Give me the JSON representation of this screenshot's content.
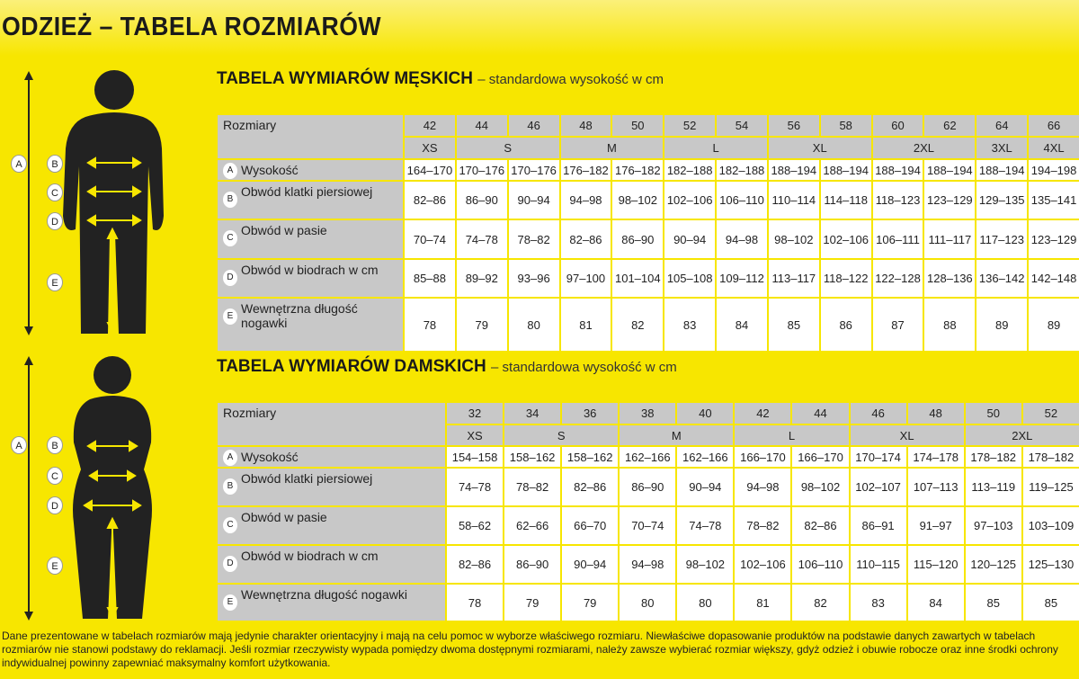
{
  "title": "ODZIEŻ – TABELA ROZMIARÓW",
  "men": {
    "heading": "TABELA WYMIARÓW MĘSKICH",
    "subheading": "– standardowa wysokość w cm",
    "size_label": "Rozmiary",
    "numbers": [
      "42",
      "44",
      "46",
      "48",
      "50",
      "52",
      "54",
      "56",
      "58",
      "60",
      "62",
      "64",
      "66"
    ],
    "letters": [
      {
        "l": "XS",
        "span": 1
      },
      {
        "l": "S",
        "span": 2
      },
      {
        "l": "M",
        "span": 2
      },
      {
        "l": "L",
        "span": 2
      },
      {
        "l": "XL",
        "span": 2
      },
      {
        "l": "2XL",
        "span": 2
      },
      {
        "l": "3XL",
        "span": 1
      },
      {
        "l": "4XL",
        "span": 1
      }
    ],
    "rows": [
      {
        "badge": "A",
        "label": "Wysokość",
        "values": [
          "164–170",
          "170–176",
          "170–176",
          "176–182",
          "176–182",
          "182–188",
          "182–188",
          "188–194",
          "188–194",
          "188–194",
          "188–194",
          "188–194",
          "194–198"
        ]
      },
      {
        "badge": "B",
        "label": "Obwód klatki piersiowej",
        "values": [
          "82–86",
          "86–90",
          "90–94",
          "94–98",
          "98–102",
          "102–106",
          "106–110",
          "110–114",
          "114–118",
          "118–123",
          "123–129",
          "129–135",
          "135–141"
        ]
      },
      {
        "badge": "C",
        "label": "Obwód w pasie",
        "values": [
          "70–74",
          "74–78",
          "78–82",
          "82–86",
          "86–90",
          "90–94",
          "94–98",
          "98–102",
          "102–106",
          "106–111",
          "111–117",
          "117–123",
          "123–129"
        ]
      },
      {
        "badge": "D",
        "label": "Obwód w biodrach w cm",
        "values": [
          "85–88",
          "89–92",
          "93–96",
          "97–100",
          "101–104",
          "105–108",
          "109–112",
          "113–117",
          "118–122",
          "122–128",
          "128–136",
          "136–142",
          "142–148"
        ]
      },
      {
        "badge": "E",
        "label": "Wewnętrzna długość nogawki",
        "values": [
          "78",
          "79",
          "80",
          "81",
          "82",
          "83",
          "84",
          "85",
          "86",
          "87",
          "88",
          "89",
          "89"
        ]
      }
    ]
  },
  "women": {
    "heading": "TABELA WYMIARÓW DAMSKICH",
    "subheading": "– standardowa wysokość w cm",
    "size_label": "Rozmiary",
    "numbers": [
      "32",
      "34",
      "36",
      "38",
      "40",
      "42",
      "44",
      "46",
      "48",
      "50",
      "52"
    ],
    "letters": [
      {
        "l": "XS",
        "span": 1
      },
      {
        "l": "S",
        "span": 2
      },
      {
        "l": "M",
        "span": 2
      },
      {
        "l": "L",
        "span": 2
      },
      {
        "l": "XL",
        "span": 2
      },
      {
        "l": "2XL",
        "span": 2
      }
    ],
    "rows": [
      {
        "badge": "A",
        "label": "Wysokość",
        "values": [
          "154–158",
          "158–162",
          "158–162",
          "162–166",
          "162–166",
          "166–170",
          "166–170",
          "170–174",
          "174–178",
          "178–182",
          "178–182"
        ]
      },
      {
        "badge": "B",
        "label": "Obwód klatki piersiowej",
        "values": [
          "74–78",
          "78–82",
          "82–86",
          "86–90",
          "90–94",
          "94–98",
          "98–102",
          "102–107",
          "107–113",
          "113–119",
          "119–125"
        ]
      },
      {
        "badge": "C",
        "label": "Obwód w pasie",
        "values": [
          "58–62",
          "62–66",
          "66–70",
          "70–74",
          "74–78",
          "78–82",
          "82–86",
          "86–91",
          "91–97",
          "97–103",
          "103–109"
        ]
      },
      {
        "badge": "D",
        "label": "Obwód w biodrach w cm",
        "values": [
          "82–86",
          "86–90",
          "90–94",
          "94–98",
          "98–102",
          "102–106",
          "106–110",
          "110–115",
          "115–120",
          "120–125",
          "125–130"
        ]
      },
      {
        "badge": "E",
        "label": "Wewnętrzna długość nogawki",
        "values": [
          "78",
          "79",
          "79",
          "80",
          "80",
          "81",
          "82",
          "83",
          "84",
          "85",
          "85"
        ]
      }
    ]
  },
  "figure_markers": [
    "A",
    "B",
    "C",
    "D",
    "E"
  ],
  "footer": "Dane prezentowane w tabelach rozmiarów mają jedynie charakter orientacyjny i mają na celu pomoc w wyborze właściwego rozmiaru. Niewłaściwe dopasowanie produktów na podstawie danych zawartych w tabelach rozmiarów nie stanowi podstawy do reklamacji. Jeśli rozmiar rzeczywisty wypada pomiędzy dwoma dostępnymi rozmiarami, należy zawsze wybierać rozmiar większy, gdyż odzież i obuwie robocze oraz inne środki ochrony indywidualnej powinny zapewniać maksymalny komfort użytkowania."
}
